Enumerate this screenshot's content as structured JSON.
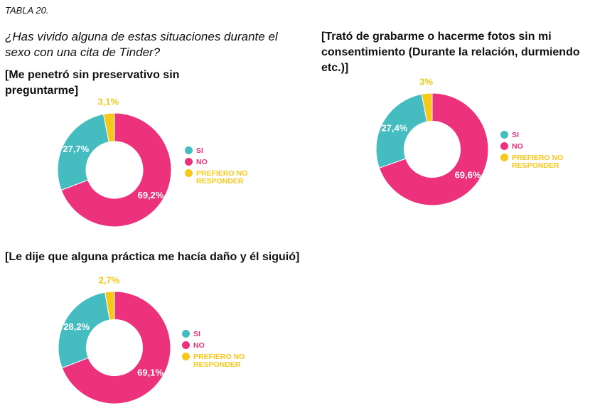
{
  "header": {
    "tabla": "TABLA 20.",
    "question": "¿Has vivido alguna de estas situaciones durante el sexo con una cita de Tinder?"
  },
  "colors": {
    "si": "#45bcc0",
    "no": "#ec317d",
    "prefiero": "#f6c81b"
  },
  "legend": {
    "si": "SI",
    "no": "NO",
    "prefiero": "PREFIERO NO RESPONDER"
  },
  "chart_data": [
    {
      "type": "pie",
      "title": "[Me penetró sin preservativo sin preguntarme]",
      "categories": [
        "SI",
        "NO",
        "PREFIERO NO RESPONDER"
      ],
      "values": [
        27.7,
        69.2,
        3.1
      ],
      "labels": [
        "27,7%",
        "69,2%",
        "3,1%"
      ]
    },
    {
      "type": "pie",
      "title": "[Trató de grabarme o hacerme fotos sin mi consentimiento (Durante la relación, durmiendo etc.)]",
      "categories": [
        "SI",
        "NO",
        "PREFIERO NO RESPONDER"
      ],
      "values": [
        27.4,
        69.6,
        3
      ],
      "labels": [
        "27,4%",
        "69,6%",
        "3%"
      ]
    },
    {
      "type": "pie",
      "title": "[Le dije que alguna práctica me hacía daño y él siguió]",
      "categories": [
        "SI",
        "NO",
        "PREFIERO NO RESPONDER"
      ],
      "values": [
        28.2,
        69.1,
        2.7
      ],
      "labels": [
        "28,2%",
        "69,1%",
        "2,7%"
      ]
    }
  ]
}
